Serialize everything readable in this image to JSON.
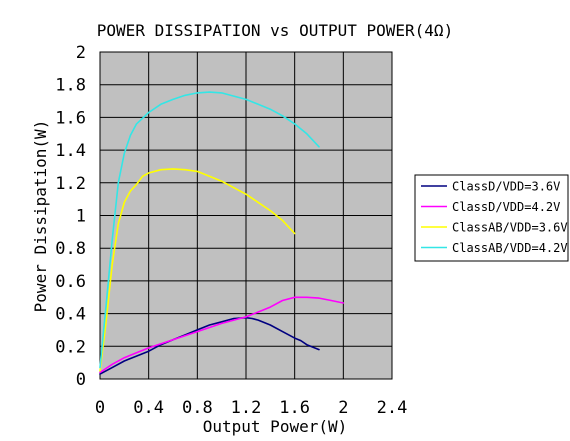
{
  "chart_data": {
    "type": "line",
    "title": "POWER DISSIPATION vs OUTPUT POWER(4Ω)",
    "xlabel": "Output Power(W)",
    "ylabel": "Power Dissipation(W)",
    "xlim": [
      0,
      2.4
    ],
    "ylim": [
      0,
      2
    ],
    "x_ticks": [
      0,
      0.4,
      0.8,
      1.2,
      1.6,
      2,
      2.4
    ],
    "x_tick_labels": [
      "0",
      "0.4",
      "0.8",
      "1.2",
      "1.6",
      "2",
      "2.4"
    ],
    "y_ticks": [
      0,
      0.2,
      0.4,
      0.6,
      0.8,
      1,
      1.2,
      1.4,
      1.6,
      1.8,
      2
    ],
    "y_tick_labels": [
      "0",
      "0.2",
      "0.4",
      "0.6",
      "0.8",
      "1",
      "1.2",
      "1.4",
      "1.6",
      "1.8",
      "2"
    ],
    "grid": true,
    "plot_background": "#c0c0c0",
    "legend_position": "right",
    "series": [
      {
        "name": "ClassD/VDD=3.6V",
        "color": "#000080",
        "points": [
          [
            0,
            0.03
          ],
          [
            0.1,
            0.07
          ],
          [
            0.2,
            0.11
          ],
          [
            0.3,
            0.14
          ],
          [
            0.4,
            0.17
          ],
          [
            0.5,
            0.21
          ],
          [
            0.6,
            0.24
          ],
          [
            0.7,
            0.27
          ],
          [
            0.8,
            0.3
          ],
          [
            0.9,
            0.33
          ],
          [
            1.0,
            0.35
          ],
          [
            1.1,
            0.37
          ],
          [
            1.2,
            0.375
          ],
          [
            1.25,
            0.37
          ],
          [
            1.3,
            0.36
          ],
          [
            1.4,
            0.33
          ],
          [
            1.5,
            0.29
          ],
          [
            1.6,
            0.25
          ],
          [
            1.65,
            0.235
          ],
          [
            1.7,
            0.21
          ],
          [
            1.8,
            0.18
          ]
        ]
      },
      {
        "name": "ClassD/VDD=4.2V",
        "color": "#ff00ff",
        "points": [
          [
            0,
            0.04
          ],
          [
            0.1,
            0.09
          ],
          [
            0.2,
            0.13
          ],
          [
            0.3,
            0.16
          ],
          [
            0.4,
            0.19
          ],
          [
            0.6,
            0.24
          ],
          [
            0.8,
            0.29
          ],
          [
            1.0,
            0.34
          ],
          [
            1.2,
            0.38
          ],
          [
            1.3,
            0.41
          ],
          [
            1.4,
            0.44
          ],
          [
            1.5,
            0.48
          ],
          [
            1.6,
            0.5
          ],
          [
            1.7,
            0.5
          ],
          [
            1.8,
            0.495
          ],
          [
            1.9,
            0.48
          ],
          [
            2.0,
            0.465
          ]
        ]
      },
      {
        "name": "ClassAB/VDD=3.6V",
        "color": "#ffff00",
        "points": [
          [
            0,
            0.05
          ],
          [
            0.05,
            0.35
          ],
          [
            0.1,
            0.7
          ],
          [
            0.15,
            0.95
          ],
          [
            0.2,
            1.08
          ],
          [
            0.25,
            1.15
          ],
          [
            0.3,
            1.19
          ],
          [
            0.35,
            1.24
          ],
          [
            0.4,
            1.26
          ],
          [
            0.5,
            1.28
          ],
          [
            0.6,
            1.285
          ],
          [
            0.7,
            1.28
          ],
          [
            0.8,
            1.27
          ],
          [
            0.9,
            1.24
          ],
          [
            1.0,
            1.21
          ],
          [
            1.1,
            1.17
          ],
          [
            1.2,
            1.13
          ],
          [
            1.3,
            1.08
          ],
          [
            1.4,
            1.03
          ],
          [
            1.5,
            0.97
          ],
          [
            1.6,
            0.89
          ]
        ]
      },
      {
        "name": "ClassAB/VDD=4.2V",
        "color": "#33e6e6",
        "points": [
          [
            0,
            0.07
          ],
          [
            0.05,
            0.45
          ],
          [
            0.1,
            0.85
          ],
          [
            0.15,
            1.2
          ],
          [
            0.2,
            1.38
          ],
          [
            0.25,
            1.49
          ],
          [
            0.3,
            1.56
          ],
          [
            0.4,
            1.63
          ],
          [
            0.5,
            1.68
          ],
          [
            0.6,
            1.71
          ],
          [
            0.7,
            1.735
          ],
          [
            0.8,
            1.75
          ],
          [
            0.9,
            1.755
          ],
          [
            1.0,
            1.75
          ],
          [
            1.1,
            1.73
          ],
          [
            1.2,
            1.71
          ],
          [
            1.3,
            1.68
          ],
          [
            1.4,
            1.65
          ],
          [
            1.5,
            1.61
          ],
          [
            1.6,
            1.56
          ],
          [
            1.7,
            1.5
          ],
          [
            1.8,
            1.42
          ]
        ]
      }
    ]
  }
}
